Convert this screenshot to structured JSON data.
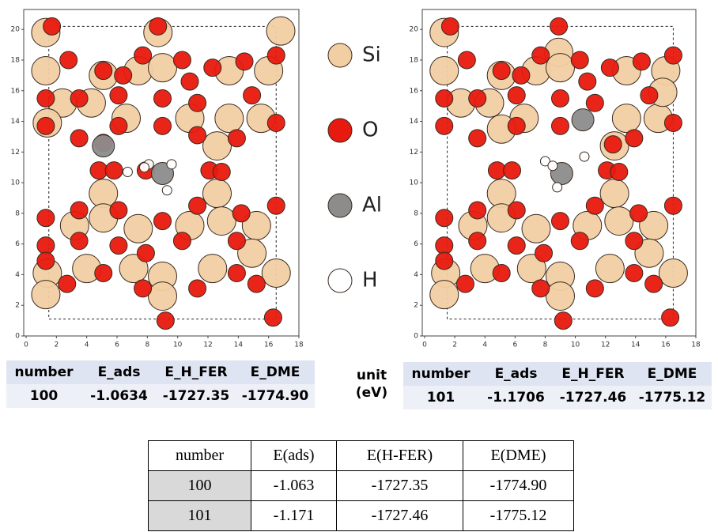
{
  "chart_data": [
    {
      "type": "scatter",
      "xlim": [
        0,
        18
      ],
      "ylim": [
        0,
        21.3
      ],
      "xticks": [
        0,
        2,
        4,
        6,
        8,
        10,
        12,
        14,
        16,
        18
      ],
      "yticks": [
        0,
        2,
        4,
        6,
        8,
        10,
        12,
        14,
        16,
        18,
        20
      ],
      "box": {
        "x": [
          1.5,
          16.5
        ],
        "y": [
          1.1,
          20.2
        ]
      },
      "series": [
        {
          "name": "Si",
          "color": "#f2cfa3",
          "x": [
            1.3,
            1.3,
            5.1,
            7.4,
            8.7,
            9.0,
            13.4,
            16.0,
            16.8,
            2.4,
            4.3,
            6.6,
            10.8,
            13.4,
            15.5,
            1.4,
            12.6,
            5.1,
            12.6,
            3.2,
            5.1,
            7.4,
            10.8,
            12.9,
            15.2,
            1.4,
            1.3,
            4.0,
            7.1,
            9.0,
            12.3,
            14.9,
            16.5,
            9.0
          ],
          "y": [
            19.8,
            17.3,
            17.0,
            17.3,
            19.8,
            17.5,
            17.3,
            17.3,
            19.9,
            15.2,
            15.2,
            14.2,
            14.2,
            14.2,
            14.2,
            13.9,
            12.4,
            9.3,
            9.3,
            7.2,
            7.7,
            7.0,
            7.2,
            7.5,
            7.2,
            4.1,
            2.7,
            4.4,
            4.4,
            3.9,
            4.4,
            5.4,
            4.1,
            2.6
          ]
        },
        {
          "name": "O",
          "color": "#e8190e",
          "x": [
            1.7,
            8.7,
            2.8,
            5.1,
            6.4,
            7.7,
            10.3,
            12.3,
            14.4,
            16.5,
            1.3,
            3.5,
            6.1,
            9.0,
            10.8,
            11.3,
            14.9,
            1.3,
            3.5,
            6.1,
            9.0,
            11.3,
            13.9,
            16.5,
            5.1,
            4.8,
            5.8,
            7.9,
            12.1,
            12.9,
            1.3,
            3.5,
            6.1,
            9.0,
            11.3,
            14.2,
            16.5,
            1.3,
            3.5,
            6.1,
            7.9,
            10.3,
            13.9,
            1.3,
            5.1,
            7.7,
            11.3,
            13.9,
            15.2,
            9.2,
            16.3,
            2.7
          ],
          "y": [
            20.2,
            20.2,
            18.0,
            17.3,
            17.0,
            18.3,
            18.0,
            17.5,
            17.9,
            18.3,
            15.5,
            15.5,
            15.7,
            15.5,
            16.6,
            15.2,
            15.7,
            13.7,
            12.9,
            13.7,
            13.7,
            13.1,
            12.9,
            13.9,
            12.6,
            10.8,
            10.8,
            10.8,
            10.8,
            10.7,
            7.7,
            8.2,
            8.2,
            7.5,
            8.5,
            8.0,
            8.5,
            5.9,
            6.2,
            5.9,
            5.4,
            6.2,
            6.2,
            4.9,
            4.1,
            3.1,
            3.1,
            4.1,
            3.4,
            1.0,
            1.2,
            3.4
          ]
        },
        {
          "name": "Al",
          "color": "#8c8c8c",
          "x": [
            5.1,
            9.0
          ],
          "y": [
            12.4,
            10.6
          ]
        },
        {
          "name": "H",
          "color": "#ffffff",
          "x": [
            6.7,
            8.1,
            9.6,
            9.3,
            7.8
          ],
          "y": [
            10.7,
            11.2,
            11.2,
            9.5,
            11.0
          ]
        }
      ]
    },
    {
      "type": "scatter",
      "xlim": [
        0,
        18
      ],
      "ylim": [
        0,
        21.3
      ],
      "xticks": [
        0,
        2,
        4,
        6,
        8,
        10,
        12,
        14,
        16,
        18
      ],
      "yticks": [
        0,
        2,
        4,
        6,
        8,
        10,
        12,
        14,
        16,
        18,
        20
      ],
      "box": {
        "x": [
          1.5,
          16.5
        ],
        "y": [
          1.1,
          20.2
        ]
      },
      "series": [
        {
          "name": "Si",
          "color": "#f2cfa3",
          "x": [
            1.3,
            1.3,
            5.1,
            7.4,
            8.9,
            9.0,
            13.4,
            16.0,
            2.4,
            4.3,
            6.6,
            13.4,
            15.5,
            15.8,
            5.1,
            12.6,
            5.1,
            12.6,
            3.2,
            5.1,
            7.4,
            10.8,
            12.9,
            15.2,
            1.4,
            1.3,
            4.0,
            7.1,
            9.0,
            12.3,
            14.9,
            16.5,
            9.0
          ],
          "y": [
            19.8,
            17.3,
            17.0,
            17.3,
            18.5,
            17.5,
            17.3,
            17.3,
            15.2,
            15.2,
            14.2,
            14.2,
            14.2,
            15.9,
            13.5,
            12.4,
            9.3,
            9.3,
            7.2,
            7.7,
            7.0,
            7.2,
            7.5,
            7.2,
            4.1,
            2.7,
            4.4,
            4.4,
            3.9,
            4.4,
            5.4,
            4.1,
            2.6
          ]
        },
        {
          "name": "O",
          "color": "#e8190e",
          "x": [
            1.7,
            8.9,
            2.8,
            5.1,
            6.4,
            7.7,
            10.3,
            12.3,
            14.4,
            16.5,
            1.3,
            3.5,
            6.1,
            9.0,
            10.8,
            11.3,
            14.9,
            1.3,
            3.5,
            6.1,
            9.0,
            12.5,
            13.9,
            16.5,
            4.8,
            5.8,
            12.1,
            12.9,
            1.3,
            3.5,
            6.1,
            9.0,
            11.3,
            14.2,
            16.5,
            1.3,
            3.5,
            6.1,
            7.9,
            10.3,
            13.9,
            1.3,
            5.1,
            7.7,
            11.3,
            13.9,
            15.2,
            9.2,
            16.3,
            2.7
          ],
          "y": [
            20.2,
            20.2,
            18.0,
            17.3,
            17.0,
            18.3,
            18.0,
            17.5,
            17.9,
            18.3,
            15.5,
            15.5,
            15.7,
            15.5,
            16.6,
            15.2,
            15.7,
            13.7,
            12.9,
            13.7,
            13.7,
            12.5,
            12.9,
            13.9,
            10.8,
            10.8,
            10.8,
            10.7,
            7.7,
            8.2,
            8.2,
            7.5,
            8.5,
            8.0,
            8.5,
            5.9,
            6.2,
            5.9,
            5.4,
            6.2,
            6.2,
            4.9,
            4.1,
            3.1,
            3.1,
            4.1,
            3.4,
            1.0,
            1.2,
            3.4
          ]
        },
        {
          "name": "Al",
          "color": "#8c8c8c",
          "x": [
            10.5,
            9.1
          ],
          "y": [
            14.1,
            10.6
          ]
        },
        {
          "name": "H",
          "color": "#ffffff",
          "x": [
            8.0,
            8.5,
            10.6,
            8.8
          ],
          "y": [
            11.4,
            11.1,
            11.7,
            9.7
          ]
        }
      ]
    }
  ],
  "table_left": {
    "header": [
      "number",
      "E_ads",
      "E_H_FER",
      "E_DME"
    ],
    "row": [
      "100",
      "-1.0634",
      "-1727.35",
      "-1774.90"
    ]
  },
  "unit_label": [
    "unit",
    "(eV)"
  ],
  "table_right": {
    "header": [
      "number",
      "E_ads",
      "E_H_FER",
      "E_DME"
    ],
    "row": [
      "101",
      "-1.1706",
      "-1727.46",
      "-1775.12"
    ]
  },
  "table_bottom": {
    "header": [
      "number",
      "E(ads)",
      "E(H-FER)",
      "E(DME)"
    ],
    "rows": [
      [
        "100",
        "-1.063",
        "-1727.35",
        "-1774.90"
      ],
      [
        "101",
        "-1.171",
        "-1727.46",
        "-1775.12"
      ]
    ]
  }
}
